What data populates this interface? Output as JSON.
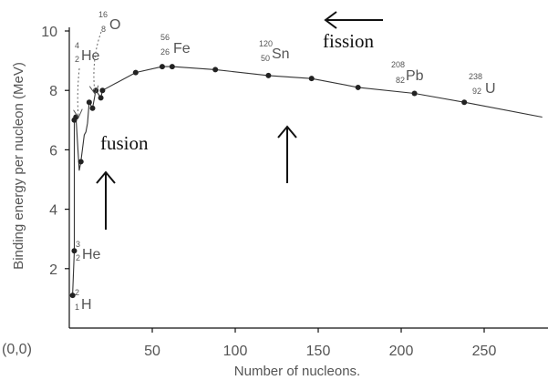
{
  "chart_data": {
    "type": "line",
    "title": "",
    "xlabel": "Number of nucleons.",
    "ylabel": "Binding energy per nucleon (MeV)",
    "xlim": [
      0,
      285
    ],
    "ylim": [
      0,
      10.4
    ],
    "x_ticks": [
      50,
      100,
      150,
      200,
      250
    ],
    "y_ticks": [
      2,
      4,
      6,
      8,
      10
    ],
    "origin_label": "(0,0)",
    "grid": false,
    "series": [
      {
        "name": "",
        "points": [
          {
            "x": 2,
            "y": 1.1
          },
          {
            "x": 3,
            "y": 2.6
          },
          {
            "x": 3,
            "y": 7.0
          },
          {
            "x": 4,
            "y": 7.1
          },
          {
            "x": 6,
            "y": 5.3
          },
          {
            "x": 7,
            "y": 5.6
          },
          {
            "x": 9,
            "y": 6.5
          },
          {
            "x": 10,
            "y": 6.6
          },
          {
            "x": 11,
            "y": 6.9
          },
          {
            "x": 12,
            "y": 7.6
          },
          {
            "x": 14,
            "y": 7.4
          },
          {
            "x": 16,
            "y": 8.0
          },
          {
            "x": 19,
            "y": 7.75
          },
          {
            "x": 20,
            "y": 8.0
          },
          {
            "x": 40,
            "y": 8.6
          },
          {
            "x": 56,
            "y": 8.8
          },
          {
            "x": 62,
            "y": 8.8
          },
          {
            "x": 88,
            "y": 8.7
          },
          {
            "x": 120,
            "y": 8.5
          },
          {
            "x": 146,
            "y": 8.4
          },
          {
            "x": 174,
            "y": 8.1
          },
          {
            "x": 208,
            "y": 7.9
          },
          {
            "x": 238,
            "y": 7.6
          },
          {
            "x": 285,
            "y": 7.1
          }
        ]
      }
    ],
    "markers": [
      {
        "x": 2,
        "y": 1.1
      },
      {
        "x": 3,
        "y": 2.6
      },
      {
        "x": 3,
        "y": 7.0
      },
      {
        "x": 4,
        "y": 7.1
      },
      {
        "x": 7,
        "y": 5.6
      },
      {
        "x": 12,
        "y": 7.6
      },
      {
        "x": 14,
        "y": 7.4
      },
      {
        "x": 16,
        "y": 8.0
      },
      {
        "x": 19,
        "y": 7.75
      },
      {
        "x": 20,
        "y": 8.0
      },
      {
        "x": 40,
        "y": 8.6
      },
      {
        "x": 56,
        "y": 8.8
      },
      {
        "x": 62,
        "y": 8.8
      },
      {
        "x": 88,
        "y": 8.7
      },
      {
        "x": 120,
        "y": 8.5
      },
      {
        "x": 146,
        "y": 8.4
      },
      {
        "x": 174,
        "y": 8.1
      },
      {
        "x": 208,
        "y": 7.9
      },
      {
        "x": 238,
        "y": 7.6
      }
    ],
    "isotopes": [
      {
        "symbol": "H",
        "mass": "2",
        "z": "1"
      },
      {
        "symbol": "He",
        "mass": "3",
        "z": "2"
      },
      {
        "symbol": "He",
        "mass": "4",
        "z": "2"
      },
      {
        "symbol": "O",
        "mass": "16",
        "z": "8"
      },
      {
        "symbol": "Fe",
        "mass": "56",
        "z": "26"
      },
      {
        "symbol": "Sn",
        "mass": "120",
        "z": "50"
      },
      {
        "symbol": "Pb",
        "mass": "208",
        "z": "82"
      },
      {
        "symbol": "U",
        "mass": "238",
        "z": "92"
      }
    ],
    "annotations": {
      "fusion": "fusion",
      "fission": "fission"
    }
  }
}
